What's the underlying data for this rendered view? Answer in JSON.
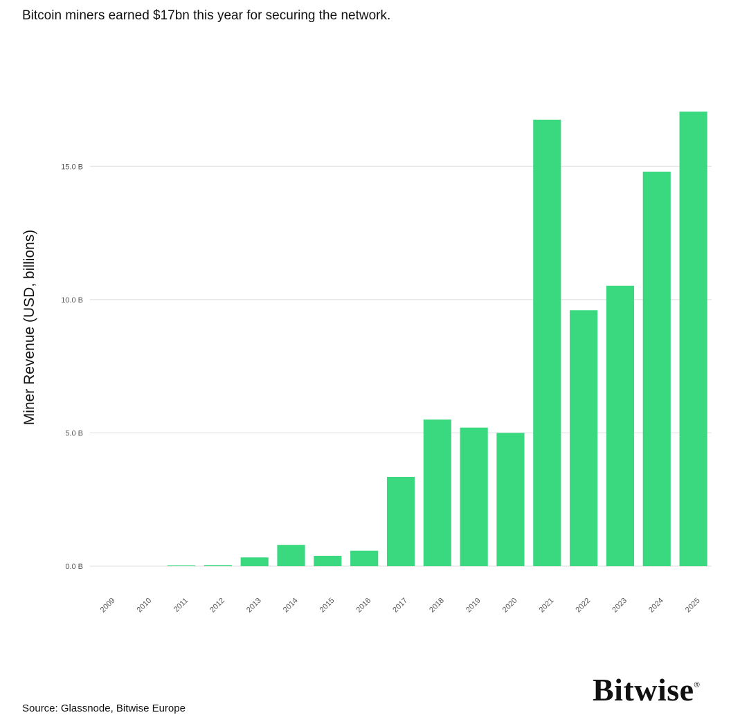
{
  "title": "Bitcoin miners earned $17bn this year for securing the network.",
  "source": "Source: Glassnode, Bitwise Europe",
  "logo": {
    "text": "Bitwise",
    "mark": "®"
  },
  "colors": {
    "bar": "#3ad97f",
    "grid": "#dddddd",
    "text": "#111111"
  },
  "chart_data": {
    "type": "bar",
    "title": "Bitcoin miners earned $17bn this year for securing the network.",
    "xlabel": "",
    "ylabel": "Miner Revenue (USD, billions)",
    "ylim": [
      0,
      17.5
    ],
    "yticks": [
      {
        "value": 0,
        "label": "0.0 B"
      },
      {
        "value": 5,
        "label": "5.0 B"
      },
      {
        "value": 10,
        "label": "10.0 B"
      },
      {
        "value": 15,
        "label": "15.0 B"
      }
    ],
    "categories": [
      "2009",
      "2010",
      "2011",
      "2012",
      "2013",
      "2014",
      "2015",
      "2016",
      "2017",
      "2018",
      "2019",
      "2020",
      "2021",
      "2022",
      "2023",
      "2024",
      "2025"
    ],
    "values": [
      0.0,
      0.0,
      0.03,
      0.04,
      0.33,
      0.8,
      0.39,
      0.58,
      3.35,
      5.5,
      5.2,
      5.0,
      16.75,
      9.6,
      10.52,
      14.8,
      17.05
    ],
    "grid": true,
    "legend": "none"
  }
}
